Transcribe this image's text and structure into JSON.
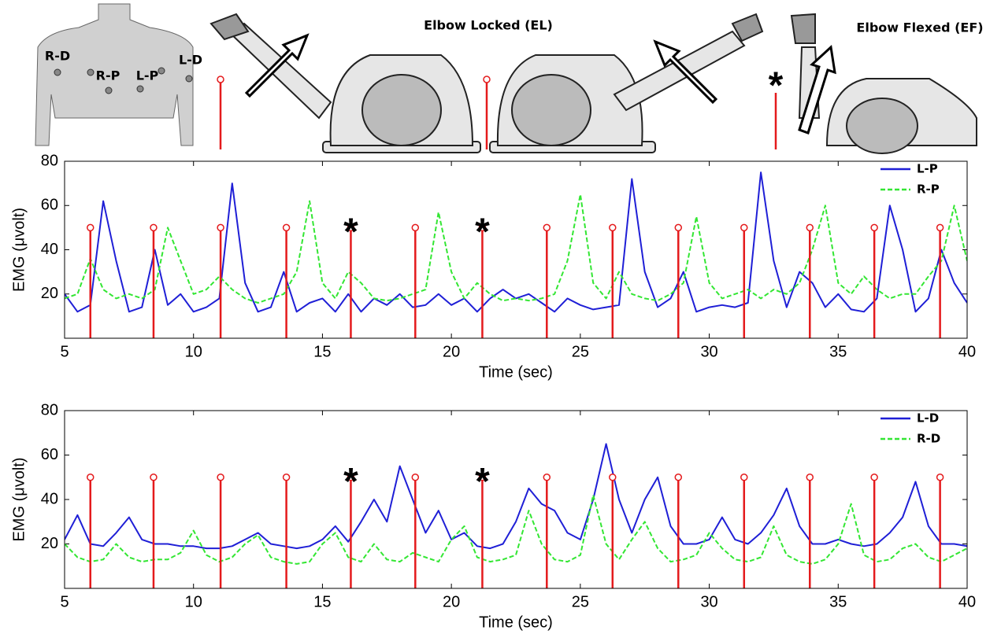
{
  "illustration": {
    "electrodes": [
      "R-D",
      "R-P",
      "L-P",
      "L-D"
    ],
    "captions": [
      "Elbow Locked (EL)",
      "Elbow Flexed (EF)"
    ],
    "marker": "*"
  },
  "chart_data": [
    {
      "type": "line",
      "xlabel": "Time (sec)",
      "ylabel": "EMG (μvolt)",
      "xlim": [
        5,
        40
      ],
      "ylim": [
        0,
        80
      ],
      "xticks": [
        5,
        10,
        15,
        20,
        25,
        30,
        35,
        40
      ],
      "yticks": [
        20,
        40,
        60,
        80
      ],
      "legend": "upper right",
      "x": [
        5,
        5.5,
        6,
        6.5,
        7,
        7.5,
        8,
        8.5,
        9,
        9.5,
        10,
        10.5,
        11,
        11.5,
        12,
        12.5,
        13,
        13.5,
        14,
        14.5,
        15,
        15.5,
        16,
        16.5,
        17,
        17.5,
        18,
        18.5,
        19,
        19.5,
        20,
        20.5,
        21,
        21.5,
        22,
        22.5,
        23,
        23.5,
        24,
        24.5,
        25,
        25.5,
        26,
        26.5,
        27,
        27.5,
        28,
        28.5,
        29,
        29.5,
        30,
        30.5,
        31,
        31.5,
        32,
        32.5,
        33,
        33.5,
        34,
        34.5,
        35,
        35.5,
        36,
        36.5,
        37,
        37.5,
        38,
        38.5,
        39,
        39.5,
        40
      ],
      "series": [
        {
          "name": "L-P",
          "color": "#1f1fd6",
          "linestyle": "solid",
          "values": [
            20,
            12,
            15,
            62,
            35,
            12,
            14,
            40,
            15,
            20,
            12,
            14,
            18,
            70,
            25,
            12,
            14,
            30,
            12,
            16,
            18,
            12,
            20,
            12,
            18,
            15,
            20,
            14,
            15,
            20,
            15,
            18,
            12,
            18,
            22,
            18,
            20,
            16,
            12,
            18,
            15,
            13,
            14,
            15,
            72,
            30,
            14,
            18,
            30,
            12,
            14,
            15,
            14,
            16,
            75,
            35,
            14,
            30,
            25,
            14,
            20,
            13,
            12,
            18,
            60,
            40,
            12,
            18,
            40,
            25,
            16
          ]
        },
        {
          "name": "R-P",
          "color": "#33e633",
          "linestyle": "dashed",
          "values": [
            18,
            20,
            36,
            22,
            18,
            20,
            18,
            22,
            50,
            35,
            20,
            22,
            28,
            22,
            18,
            16,
            18,
            20,
            30,
            62,
            25,
            18,
            30,
            25,
            18,
            17,
            18,
            20,
            22,
            57,
            30,
            18,
            25,
            20,
            17,
            18,
            17,
            18,
            20,
            35,
            65,
            25,
            18,
            30,
            20,
            18,
            17,
            20,
            25,
            55,
            25,
            18,
            20,
            22,
            18,
            22,
            20,
            25,
            40,
            60,
            25,
            20,
            28,
            22,
            18,
            20,
            20,
            28,
            35,
            60,
            35
          ]
        }
      ],
      "stems": {
        "color": "#e41a1c",
        "x": [
          6,
          8.45,
          11.05,
          13.6,
          16.1,
          18.6,
          21.2,
          23.7,
          26.25,
          28.8,
          31.35,
          33.9,
          36.4,
          38.95
        ],
        "values": [
          50,
          50,
          50,
          50,
          50,
          50,
          50,
          50,
          50,
          50,
          50,
          50,
          50,
          50
        ]
      },
      "annotations": [
        {
          "text": "*",
          "x": 16.1,
          "y": 52
        },
        {
          "text": "*",
          "x": 21.2,
          "y": 52
        }
      ]
    },
    {
      "type": "line",
      "xlabel": "Time (sec)",
      "ylabel": "EMG (μvolt)",
      "xlim": [
        5,
        40
      ],
      "ylim": [
        0,
        80
      ],
      "xticks": [
        5,
        10,
        15,
        20,
        25,
        30,
        35,
        40
      ],
      "yticks": [
        20,
        40,
        60,
        80
      ],
      "legend": "upper right",
      "x": [
        5,
        5.5,
        6,
        6.5,
        7,
        7.5,
        8,
        8.5,
        9,
        9.5,
        10,
        10.5,
        11,
        11.5,
        12,
        12.5,
        13,
        13.5,
        14,
        14.5,
        15,
        15.5,
        16,
        16.5,
        17,
        17.5,
        18,
        18.5,
        19,
        19.5,
        20,
        20.5,
        21,
        21.5,
        22,
        22.5,
        23,
        23.5,
        24,
        24.5,
        25,
        25.5,
        26,
        26.5,
        27,
        27.5,
        28,
        28.5,
        29,
        29.5,
        30,
        30.5,
        31,
        31.5,
        32,
        32.5,
        33,
        33.5,
        34,
        34.5,
        35,
        35.5,
        36,
        36.5,
        37,
        37.5,
        38,
        38.5,
        39,
        39.5,
        40
      ],
      "series": [
        {
          "name": "L-D",
          "color": "#1f1fd6",
          "linestyle": "solid",
          "values": [
            22,
            33,
            20,
            19,
            25,
            32,
            22,
            20,
            20,
            19,
            19,
            18,
            18,
            19,
            22,
            25,
            20,
            19,
            18,
            19,
            22,
            28,
            21,
            30,
            40,
            30,
            55,
            40,
            25,
            35,
            22,
            25,
            19,
            18,
            20,
            30,
            45,
            38,
            35,
            25,
            22,
            40,
            65,
            40,
            25,
            40,
            50,
            28,
            20,
            20,
            22,
            32,
            22,
            20,
            25,
            33,
            45,
            28,
            20,
            20,
            22,
            20,
            19,
            20,
            25,
            32,
            48,
            28,
            20,
            20,
            19
          ]
        },
        {
          "name": "R-D",
          "color": "#33e633",
          "linestyle": "dashed",
          "values": [
            20,
            14,
            12,
            13,
            20,
            14,
            12,
            13,
            13,
            16,
            26,
            15,
            12,
            14,
            20,
            24,
            14,
            12,
            11,
            12,
            20,
            25,
            14,
            12,
            20,
            13,
            12,
            16,
            14,
            12,
            22,
            28,
            14,
            12,
            13,
            15,
            35,
            20,
            13,
            12,
            15,
            42,
            20,
            13,
            22,
            30,
            18,
            12,
            13,
            15,
            25,
            18,
            13,
            12,
            14,
            28,
            15,
            12,
            11,
            13,
            20,
            38,
            15,
            12,
            13,
            18,
            20,
            14,
            12,
            15,
            18
          ]
        }
      ],
      "stems": {
        "color": "#e41a1c",
        "x": [
          6,
          8.45,
          11.05,
          13.6,
          16.1,
          18.6,
          21.2,
          23.7,
          26.25,
          28.8,
          31.35,
          33.9,
          36.4,
          38.95
        ],
        "values": [
          50,
          50,
          50,
          50,
          50,
          50,
          50,
          50,
          50,
          50,
          50,
          50,
          50,
          50
        ]
      },
      "annotations": [
        {
          "text": "*",
          "x": 16.1,
          "y": 52
        },
        {
          "text": "*",
          "x": 21.2,
          "y": 52
        }
      ]
    }
  ]
}
